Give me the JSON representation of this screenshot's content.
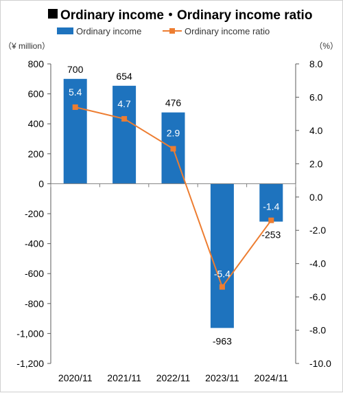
{
  "chart_data": {
    "type": "bar+line",
    "title": "Ordinary income・Ordinary income ratio",
    "categories": [
      "2020/11",
      "2021/11",
      "2022/11",
      "2023/11",
      "2024/11"
    ],
    "series": [
      {
        "name": "Ordinary income",
        "type": "bar",
        "axis": "left",
        "color": "#1e73be",
        "values": [
          700,
          654,
          476,
          -963,
          -253
        ],
        "labels": [
          "700",
          "654",
          "476",
          "-963",
          "-253"
        ]
      },
      {
        "name": "Ordinary income ratio",
        "type": "line",
        "axis": "right",
        "color": "#ed7d31",
        "values": [
          5.4,
          4.7,
          2.9,
          -5.4,
          -1.4
        ],
        "labels": [
          "5.4",
          "4.7",
          "2.9",
          "-5.4",
          "-1.4"
        ]
      }
    ],
    "y_left": {
      "unit": "（¥ million）",
      "ylim": [
        -1200,
        800
      ],
      "ticks": [
        800,
        600,
        400,
        200,
        0,
        -200,
        -400,
        -600,
        -800,
        -1000,
        -1200
      ],
      "tick_labels": [
        "800",
        "600",
        "400",
        "200",
        "0",
        "-200",
        "-400",
        "-600",
        "-800",
        "-1,000",
        "-1,200"
      ]
    },
    "y_right": {
      "unit": "（%）",
      "ylim": [
        -10,
        8
      ],
      "ticks": [
        8,
        6,
        4,
        2,
        0,
        -2,
        -4,
        -6,
        -8,
        -10
      ],
      "tick_labels": [
        "8.0",
        "6.0",
        "4.0",
        "2.0",
        "0.0",
        "-2.0",
        "-4.0",
        "-6.0",
        "-8.0",
        "-10.0"
      ]
    },
    "grid": false,
    "legend_position": "top"
  }
}
